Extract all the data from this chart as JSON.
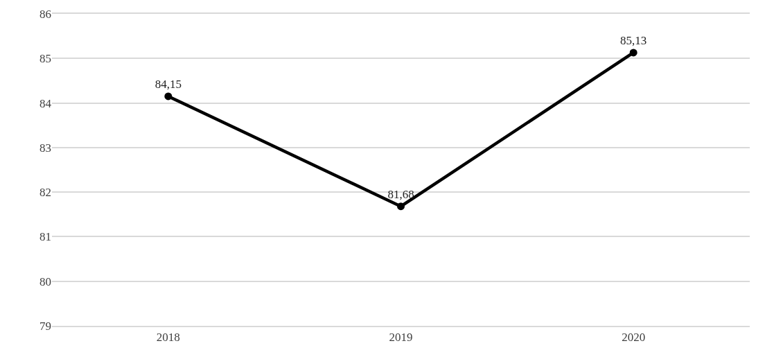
{
  "chart_data": {
    "type": "line",
    "categories": [
      "2018",
      "2019",
      "2020"
    ],
    "series": [
      {
        "color": "#000000",
        "values": [
          84.15,
          81.68,
          85.13
        ],
        "value_labels": [
          "84,15",
          "81,68",
          "85,13"
        ]
      }
    ],
    "ylim": [
      79,
      86
    ],
    "yticks": [
      79,
      80,
      81,
      82,
      83,
      84,
      85,
      86
    ],
    "grid": "y",
    "marker": "circle",
    "line_style": "solid"
  }
}
